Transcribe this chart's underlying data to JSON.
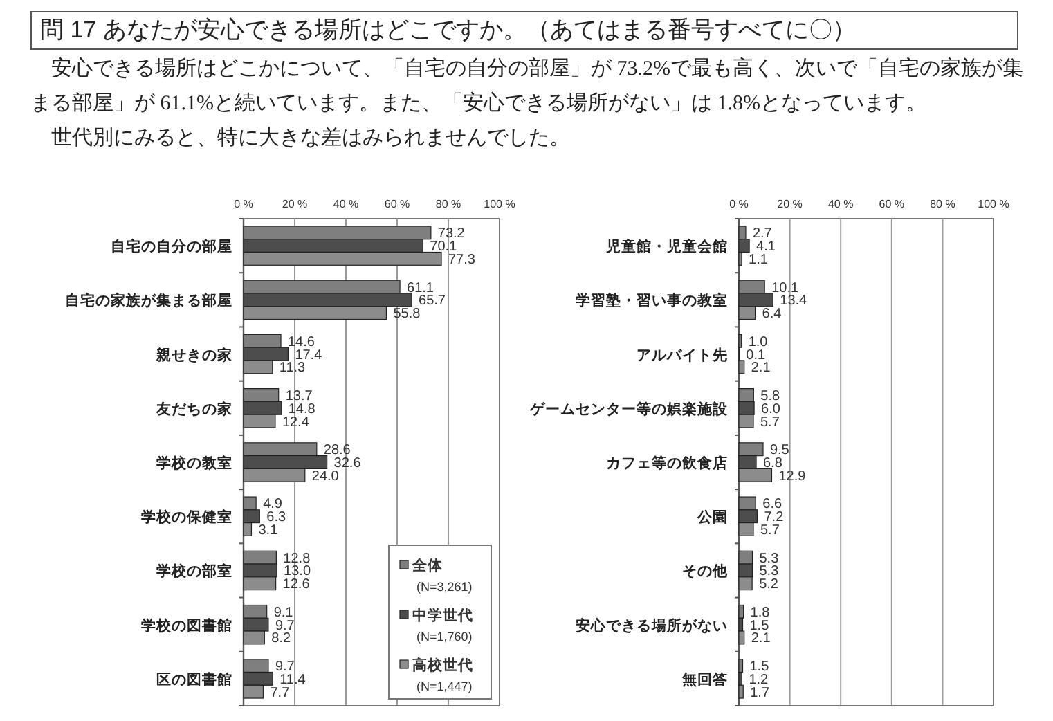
{
  "chart_data": [
    {
      "type": "bar",
      "orientation": "horizontal",
      "title": "問 17 あなたが安心できる場所はどこですか。（あてはまる番号すべてに〇）",
      "subtitle": "安心できる場所はどこかについて、「自宅の自分の部屋」が 73.2%で最も高く、次いで「自宅の家族が集まる部屋」が 61.1%と続いています。また、「安心できる場所がない」は 1.8%となっています。",
      "annotations": [
        "世代別にみると、特に大きな差はみられませんでした。"
      ],
      "categories": [
        "自宅の自分の部屋",
        "自宅の家族が集まる部屋",
        "親せきの家",
        "友だちの家",
        "学校の教室",
        "学校の保健室",
        "学校の部室",
        "学校の図書館",
        "区の図書館"
      ],
      "series": [
        {
          "name": "全体 (N=3,261)",
          "color": "#7f7f7f",
          "values": [
            73.2,
            61.1,
            14.6,
            13.7,
            28.6,
            4.9,
            12.8,
            9.1,
            9.7
          ],
          "value_labels": [
            "73.2",
            "61.1",
            "14.6",
            "13.7",
            "28.6",
            "4.9",
            "12.8",
            "9.1",
            "9.7"
          ]
        },
        {
          "name": "中学世代 (N=1,760)",
          "color": "#4d4d4d",
          "values": [
            70.1,
            65.7,
            17.4,
            14.8,
            32.6,
            6.3,
            13.0,
            9.7,
            11.4
          ],
          "value_labels": [
            "70.1",
            "65.7",
            "17.4",
            "14.8",
            "32.6",
            "6.3",
            "13.0",
            "9.7",
            "11.4"
          ]
        },
        {
          "name": "高校世代 (N=1,447)",
          "color": "#8c8c8c",
          "values": [
            77.3,
            55.8,
            11.3,
            12.4,
            24.0,
            3.1,
            12.6,
            8.2,
            7.7
          ],
          "value_labels": [
            "77.3",
            "55.8",
            "11.3",
            "12.4",
            "24.0",
            "3.1",
            "12.6",
            "8.2",
            "7.7"
          ]
        }
      ],
      "xlim": [
        0,
        100
      ],
      "xticks": [
        {
          "value": 0,
          "label": "0 %"
        },
        {
          "value": 20,
          "label": "20 %"
        },
        {
          "value": 40,
          "label": "40 %"
        },
        {
          "value": 60,
          "label": "60 %"
        },
        {
          "value": 80,
          "label": "80 %"
        },
        {
          "value": 100,
          "label": "100 %"
        }
      ],
      "grid": "x",
      "legend": "bottom right"
    },
    {
      "type": "bar",
      "orientation": "horizontal",
      "categories": [
        "児童館・児童会館",
        "学習塾・習い事の教室",
        "アルバイト先",
        "ゲームセンター等の娯楽施設",
        "カフェ等の飲食店",
        "公園",
        "その他",
        "安心できる場所がない",
        "無回答"
      ],
      "series": [
        {
          "color": "#7f7f7f",
          "values": [
            2.7,
            10.1,
            1.0,
            5.8,
            9.5,
            6.6,
            5.3,
            1.8,
            1.5
          ],
          "value_labels": [
            "2.7",
            "10.1",
            "1.0",
            "5.8",
            "9.5",
            "6.6",
            "5.3",
            "1.8",
            "1.5"
          ]
        },
        {
          "color": "#4d4d4d",
          "values": [
            4.1,
            13.4,
            0.1,
            6.0,
            6.8,
            7.2,
            5.3,
            1.5,
            1.2
          ],
          "value_labels": [
            "4.1",
            "13.4",
            "0.1",
            "6.0",
            "6.8",
            "7.2",
            "5.3",
            "1.5",
            "1.2"
          ]
        },
        {
          "color": "#8c8c8c",
          "values": [
            1.1,
            6.4,
            2.1,
            5.7,
            12.9,
            5.7,
            5.2,
            2.1,
            1.7
          ],
          "value_labels": [
            "1.1",
            "6.4",
            "2.1",
            "5.7",
            "12.9",
            "5.7",
            "5.2",
            "2.1",
            "1.7"
          ]
        }
      ],
      "xlim": [
        0,
        100
      ],
      "xticks": [
        {
          "value": 0,
          "label": "0 %"
        },
        {
          "value": 20,
          "label": "20 %"
        },
        {
          "value": 40,
          "label": "40 %"
        },
        {
          "value": 60,
          "label": "60 %"
        },
        {
          "value": 80,
          "label": "80 %"
        },
        {
          "value": 100,
          "label": "100 %"
        }
      ],
      "grid": "x"
    }
  ]
}
